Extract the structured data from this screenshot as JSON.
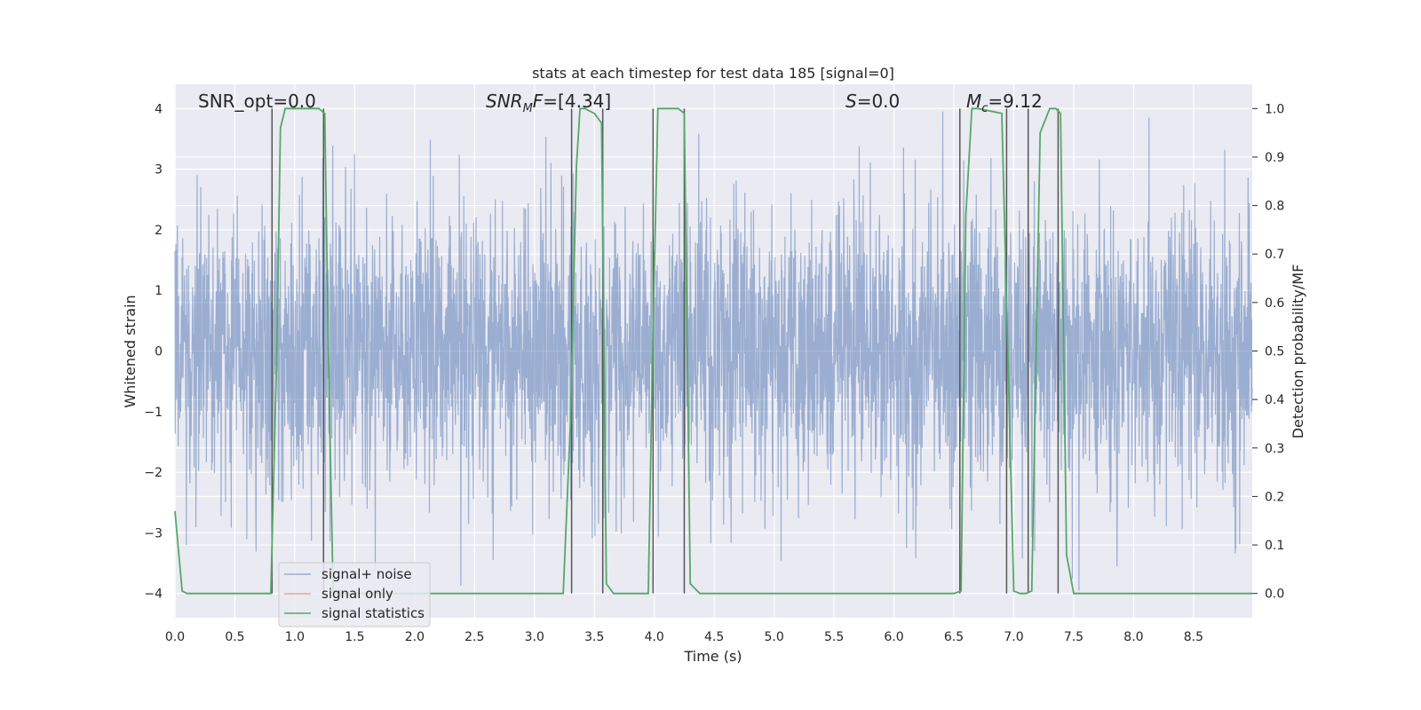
{
  "chart_data": {
    "type": "line",
    "title": "stats at each timestep for test data 185 [signal=0]",
    "xlabel": "Time (s)",
    "ylabel_left": "Whitened strain",
    "ylabel_right": "Detection probability/MF",
    "xlim": [
      0.0,
      8.99
    ],
    "ylim_left": [
      -4.4,
      4.4
    ],
    "ylim_right": [
      -0.05,
      1.05
    ],
    "xticks": [
      "0.0",
      "0.5",
      "1.0",
      "1.5",
      "2.0",
      "2.5",
      "3.0",
      "3.5",
      "4.0",
      "4.5",
      "5.0",
      "5.5",
      "6.0",
      "6.5",
      "7.0",
      "7.5",
      "8.0",
      "8.5"
    ],
    "yticks_left": [
      "4",
      "3",
      "2",
      "1",
      "0",
      "−1",
      "−2",
      "−3",
      "−4"
    ],
    "yticks_right": [
      "1.0",
      "0.9",
      "0.8",
      "0.7",
      "0.6",
      "0.5",
      "0.4",
      "0.3",
      "0.2",
      "0.1",
      "0.0"
    ],
    "grid": true,
    "annotations": {
      "snr_opt": "SNR_opt=0.0",
      "snr_mf_main": "SNR",
      "snr_mf_sub": "M",
      "snr_mf_f": "F",
      "snr_mf_val": "=[4.34]",
      "s_main": "S",
      "s_val": "=0.0",
      "mc_main": "M",
      "mc_sub": "c",
      "mc_val": "=9.12"
    },
    "legend": {
      "placement": "lower-left",
      "entries": [
        {
          "label": "signal+ noise",
          "color": "#4c72b0"
        },
        {
          "label": "signal only",
          "color": "#dd8452"
        },
        {
          "label": "signal statistics",
          "color": "#55a868"
        }
      ]
    },
    "series": [
      {
        "name": "signal+ noise",
        "color": "#4c72b0",
        "opacity": 0.5,
        "description_noise": {
          "n_samples": 3600,
          "sigma": 1.0,
          "t_start": 0.0,
          "t_end": 8.99
        }
      },
      {
        "name": "signal statistics",
        "color": "#55a868",
        "axis": "right",
        "x": [
          0.0,
          0.06,
          0.1,
          0.15,
          0.8,
          0.85,
          0.88,
          0.92,
          1.2,
          1.25,
          1.28,
          1.32,
          1.4,
          3.0,
          3.24,
          3.3,
          3.35,
          3.38,
          3.42,
          3.5,
          3.56,
          3.6,
          3.66,
          3.75,
          3.95,
          3.99,
          4.03,
          4.06,
          4.2,
          4.25,
          4.3,
          4.38,
          5.5,
          6.5,
          6.56,
          6.6,
          6.65,
          6.7,
          6.9,
          6.95,
          7.0,
          7.05,
          7.1,
          7.15,
          7.22,
          7.3,
          7.35,
          7.39,
          7.44,
          7.5,
          8.99
        ],
        "y": [
          0.17,
          0.005,
          0.0,
          0.0,
          0.0,
          0.5,
          0.96,
          1.0,
          1.0,
          0.99,
          0.5,
          0.0,
          0.0,
          0.0,
          0.0,
          0.35,
          0.88,
          1.0,
          1.0,
          0.99,
          0.97,
          0.02,
          0.0,
          0.0,
          0.0,
          0.55,
          1.0,
          1.0,
          1.0,
          0.99,
          0.02,
          0.0,
          0.0,
          0.0,
          0.005,
          0.78,
          1.0,
          1.0,
          0.99,
          0.5,
          0.005,
          0.0,
          0.0,
          0.005,
          0.95,
          1.0,
          1.0,
          0.99,
          0.08,
          0.0,
          0.0
        ]
      }
    ],
    "vertical_markers_x": [
      0.81,
      1.24,
      3.31,
      3.57,
      3.99,
      4.25,
      6.55,
      6.94,
      7.12,
      7.37
    ]
  }
}
